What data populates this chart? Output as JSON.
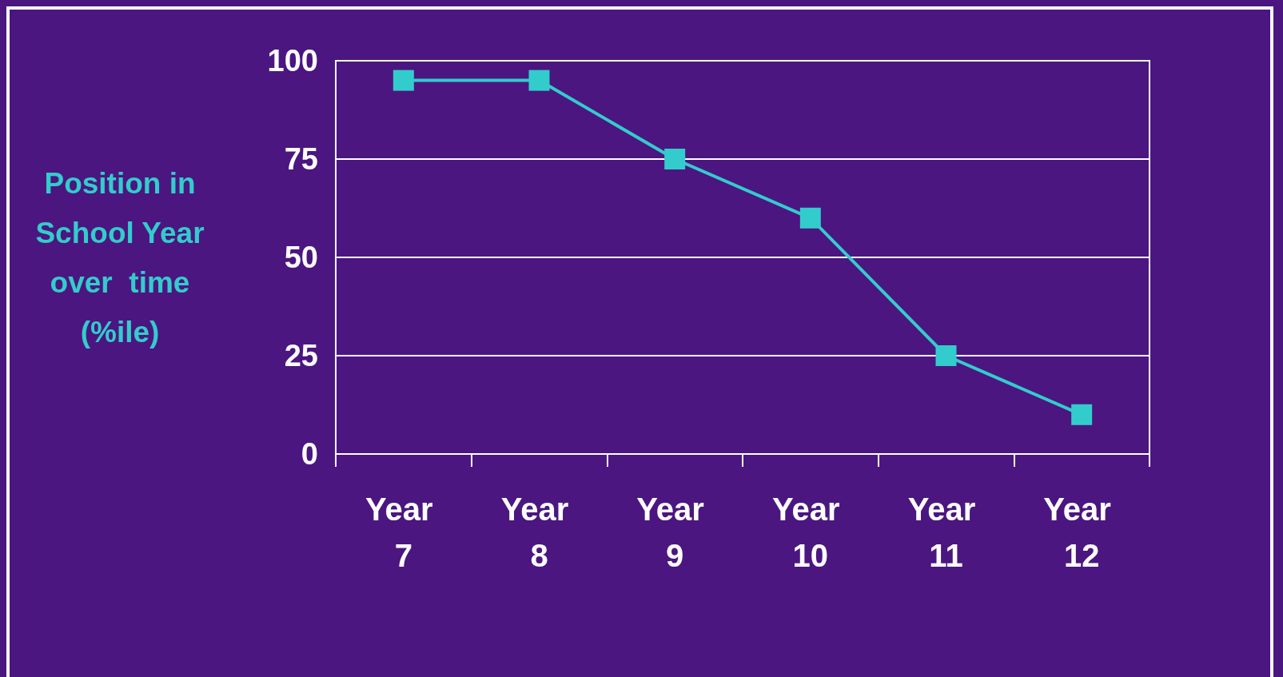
{
  "chart_data": {
    "type": "line",
    "ylabel": "Position in\nSchool Year\nover  time\n(%ile)",
    "categories": [
      "Year 7",
      "Year 8",
      "Year 9",
      "Year 10",
      "Year 11",
      "Year 12"
    ],
    "series": [
      {
        "color": "#33cccc",
        "values": [
          95,
          95,
          75,
          60,
          25,
          10
        ]
      }
    ],
    "ylim": [
      0,
      100
    ],
    "yticks": [
      0,
      25,
      50,
      75,
      100
    ],
    "grid": "y",
    "marker": "square",
    "line_style": "solid"
  }
}
